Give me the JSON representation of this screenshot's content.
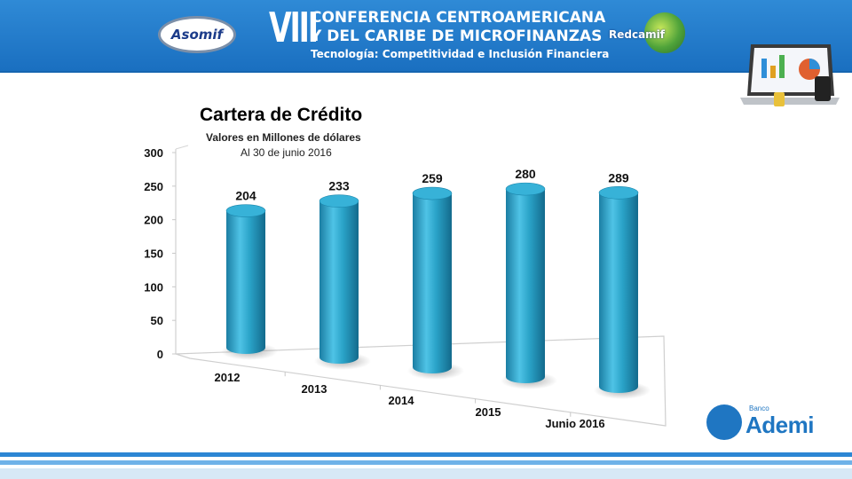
{
  "header": {
    "logo_left": "Asomif",
    "viii": "VIII",
    "line1": "CONFERENCIA CENTROAMERICANA",
    "line2": "Y DEL CARIBE DE MICROFINANZAS",
    "line3": "Tecnología: Competitividad e Inclusión Financiera",
    "logo_right": "Redcamif",
    "colors": {
      "band": "#1f7ccc",
      "text": "#ffffff"
    }
  },
  "footer": {
    "logo_banco": "Banco",
    "logo_ademi": "Ademi"
  },
  "chart_data": {
    "type": "bar",
    "title": "Cartera de Crédito",
    "subtitle": "Valores en Millones de dólares",
    "subtitle2": "Al 30  de junio 2016",
    "categories": [
      "2012",
      "2013",
      "2014",
      "2015",
      "Junio 2016"
    ],
    "values": [
      204,
      233,
      259,
      280,
      289
    ],
    "ylim": [
      0,
      300
    ],
    "yticks": [
      "0",
      "50",
      "100",
      "150",
      "200",
      "250",
      "300"
    ],
    "xlabel": "",
    "ylabel": "",
    "bar_color": "#2aa3c8",
    "legend": false
  }
}
